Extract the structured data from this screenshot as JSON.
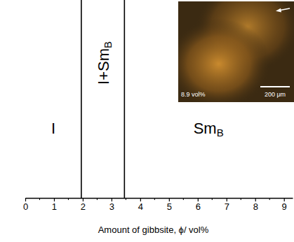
{
  "chart_data": {
    "type": "phase_diagram",
    "xlabel": "Amount of gibbsite, ϕ/ vol%",
    "xlim": [
      0,
      9.3
    ],
    "xticks": [
      0,
      1,
      2,
      3,
      4,
      5,
      6,
      7,
      8,
      9
    ],
    "minor_xticks": [
      0.5,
      1.5,
      2.5,
      3.5,
      4.5,
      5.5,
      6.5,
      7.5,
      8.5
    ],
    "boundaries": [
      1.95,
      3.45
    ],
    "regions": [
      {
        "label": "I"
      },
      {
        "label": "I+Sm",
        "sub": "B"
      },
      {
        "label": "Sm",
        "sub": "B"
      }
    ],
    "inset": {
      "label": "8.9 vol%",
      "scale_bar": "200 μm"
    }
  }
}
